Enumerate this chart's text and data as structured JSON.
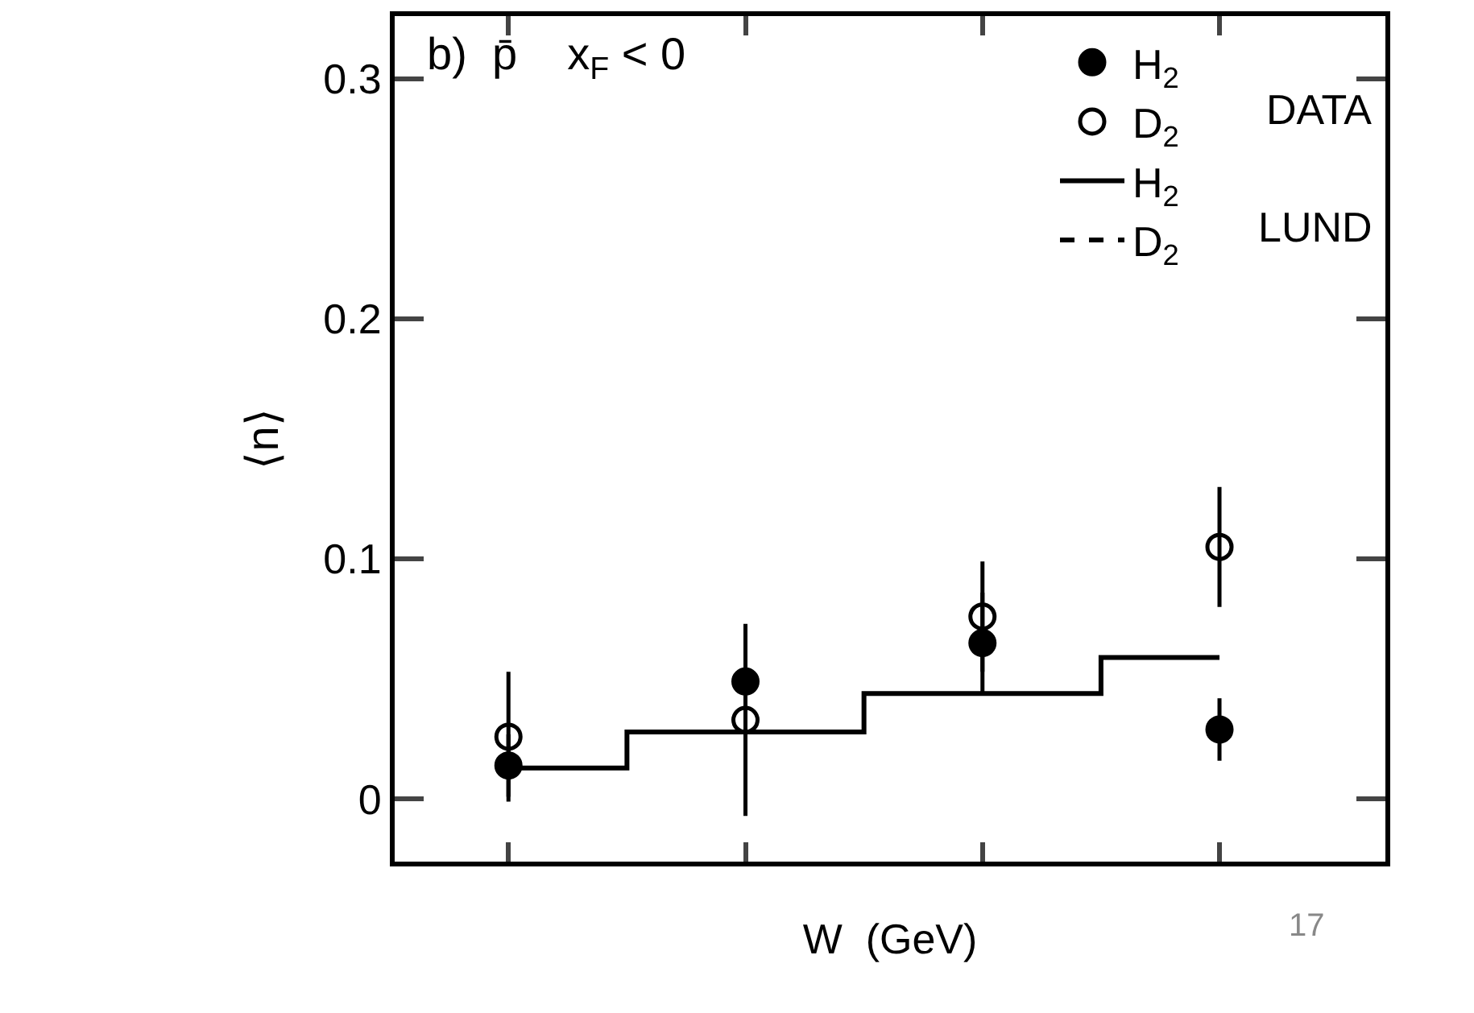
{
  "chart_data": {
    "type": "scatter",
    "xlabel": "W  (GeV)",
    "ylabel": "⟨n⟩",
    "categories": [
      null,
      null,
      null,
      null
    ],
    "ylim": [
      -0.026,
      0.326
    ],
    "yticks": [
      0,
      0.1,
      0.2,
      0.3
    ],
    "series": [
      {
        "name": "H$_{2}$",
        "marker": "circle",
        "color": "#000000",
        "values": [
          0.014,
          0.049,
          0.065,
          0.029
        ],
        "errors": [
          0.013,
          0.02,
          0.021,
          0.013
        ]
      },
      {
        "name": "D$_{2}$",
        "marker": "circle-open",
        "color": "#000000",
        "values": [
          0.026,
          0.033,
          0.076,
          0.105
        ],
        "errors": [
          0.027,
          0.04,
          0.023,
          0.025
        ]
      },
      {
        "name": "H$_{2}$",
        "type": "step",
        "line_style": "solid",
        "color": "#000000",
        "values": [
          0.013,
          0.028,
          0.044,
          0.059
        ]
      },
      {
        "name": "D$_{2}$",
        "type": "step",
        "line_style": "dashed",
        "color": "#000000",
        "values": [
          null,
          null,
          null,
          null
        ]
      }
    ],
    "legend": "top right",
    "annotations": [
      "b)  p̄    x$_{F}$ < 0",
      "DATA",
      "LUND",
      "17"
    ]
  }
}
